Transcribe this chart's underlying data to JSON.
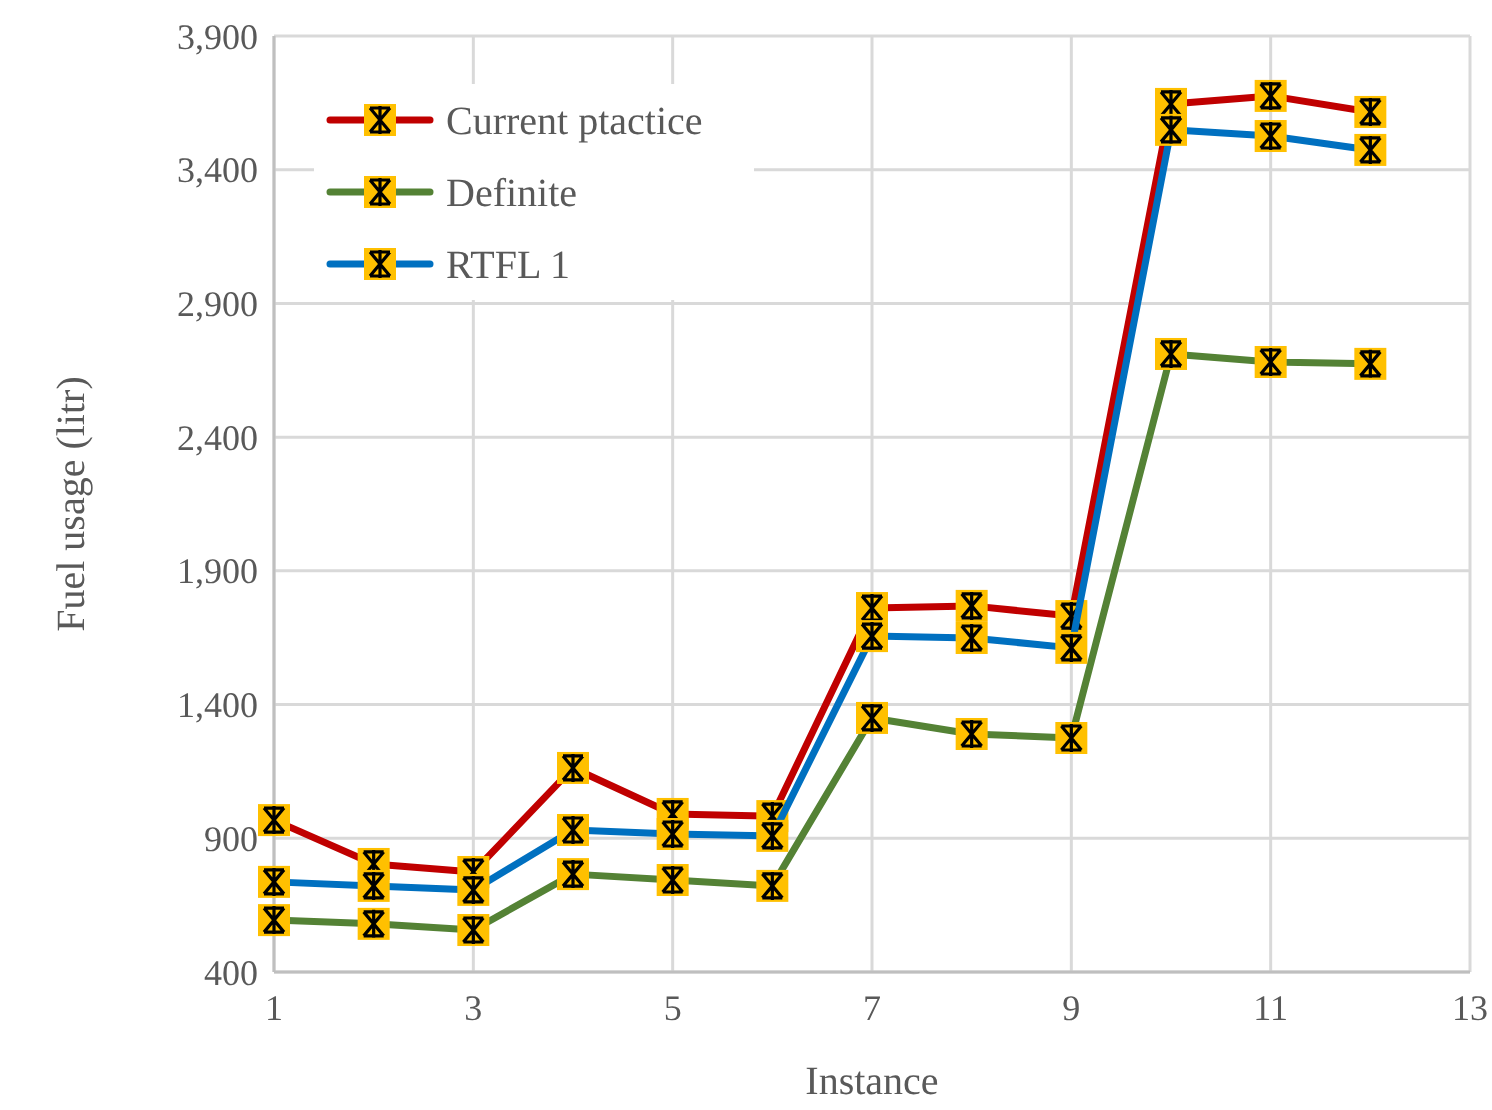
{
  "chart_data": {
    "type": "line",
    "xlabel": "Instance",
    "ylabel": "Fuel usage (litr)",
    "x": [
      1,
      2,
      3,
      4,
      5,
      6,
      7,
      8,
      9,
      10,
      11,
      12
    ],
    "series": [
      {
        "name": "Current ptactice",
        "color": "#c00000",
        "values": [
          968,
          804,
          774,
          1163,
          991,
          983,
          1761,
          1769,
          1731,
          3646,
          3676,
          3616
        ]
      },
      {
        "name": "Definite",
        "color": "#548235",
        "values": [
          594,
          580,
          557,
          766,
          744,
          722,
          1350,
          1290,
          1275,
          2711,
          2681,
          2674
        ]
      },
      {
        "name": "RTFL 1",
        "color": "#0070c0",
        "values": [
          737,
          722,
          707,
          931,
          916,
          909,
          1656,
          1649,
          1612,
          3549,
          3526,
          3474
        ]
      }
    ],
    "xlim": [
      1,
      13
    ],
    "xticks": [
      1,
      3,
      5,
      7,
      9,
      11,
      13
    ],
    "ylim": [
      400,
      3900
    ],
    "yticks": [
      400,
      900,
      {
        "value": 1400,
        "label": "1,400"
      },
      {
        "value": 1900,
        "label": "1,900"
      },
      {
        "value": 2400,
        "label": "2,400"
      },
      {
        "value": 2900,
        "label": "2,900"
      },
      {
        "value": 3400,
        "label": "3,400"
      },
      {
        "value": 3900,
        "label": "3,900"
      }
    ],
    "grid": true,
    "legend": "top left",
    "marker": "square",
    "line_style": "solid"
  }
}
